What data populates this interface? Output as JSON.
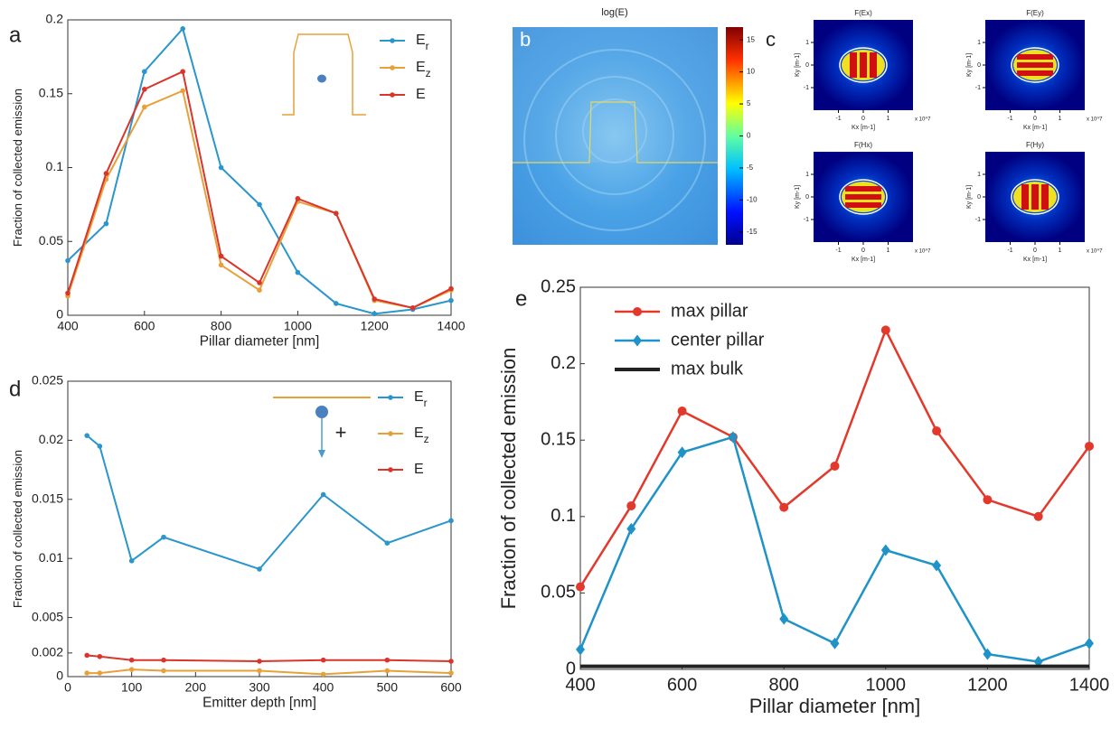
{
  "chart_data": [
    {
      "type": "line",
      "panel_label": "a",
      "xlabel": "Pillar diameter [nm]",
      "ylabel": "Fraction of collected emission",
      "x": [
        400,
        500,
        600,
        700,
        800,
        900,
        1000,
        1100,
        1200,
        1300,
        1400
      ],
      "series": [
        {
          "name": "Er",
          "color": "#2a96cc",
          "marker": "circle",
          "values": [
            0.037,
            0.062,
            0.165,
            0.194,
            0.1,
            0.075,
            0.029,
            0.008,
            0.001,
            0.004,
            0.01
          ]
        },
        {
          "name": "Ez",
          "color": "#e8a13a",
          "marker": "circle",
          "values": [
            0.013,
            0.092,
            0.141,
            0.152,
            0.034,
            0.017,
            0.077,
            0.069,
            0.01,
            0.005,
            0.017
          ]
        },
        {
          "name": "E",
          "color": "#d9352b",
          "marker": "circle",
          "values": [
            0.015,
            0.096,
            0.153,
            0.165,
            0.04,
            0.022,
            0.079,
            0.069,
            0.011,
            0.005,
            0.018
          ]
        }
      ],
      "xlim": [
        400,
        1400
      ],
      "ylim": [
        0,
        0.2
      ],
      "xticks": [
        400,
        600,
        800,
        1000,
        1200,
        1400
      ],
      "yticks": [
        0,
        0.05,
        0.1,
        0.15,
        0.2
      ],
      "legend": "upper right"
    },
    {
      "type": "line",
      "panel_label": "d",
      "xlabel": "Emitter depth [nm]",
      "ylabel": "Fraction of collected emission",
      "annotations": [
        "+"
      ],
      "x": [
        30,
        50,
        100,
        150,
        300,
        400,
        500,
        600
      ],
      "series": [
        {
          "name": "Er",
          "color": "#2a96cc",
          "marker": "circle",
          "values": [
            0.0204,
            0.0195,
            0.0098,
            0.0118,
            0.0091,
            0.0154,
            0.0113,
            0.0132
          ]
        },
        {
          "name": "Ez",
          "color": "#e8a13a",
          "marker": "circle",
          "values": [
            0.0003,
            0.0003,
            0.0006,
            0.0005,
            0.0005,
            0.0002,
            0.0005,
            0.0003
          ]
        },
        {
          "name": "E",
          "color": "#d9352b",
          "marker": "circle",
          "values": [
            0.0018,
            0.0017,
            0.0014,
            0.0014,
            0.0013,
            0.0014,
            0.0014,
            0.0013
          ]
        }
      ],
      "xlim": [
        0,
        600
      ],
      "ylim": [
        0,
        0.025
      ],
      "xticks": [
        0,
        100,
        200,
        300,
        400,
        500,
        600
      ],
      "yticks": [
        0,
        0.002,
        0.005,
        0.01,
        0.015,
        0.02,
        0.025
      ],
      "legend": "upper right"
    },
    {
      "type": "line",
      "panel_label": "e",
      "xlabel": "Pillar diameter [nm]",
      "ylabel": "Fraction of collected emission",
      "x": [
        400,
        500,
        600,
        700,
        800,
        900,
        1000,
        1100,
        1200,
        1300,
        1400
      ],
      "series": [
        {
          "name": "max pillar",
          "color": "#e3392c",
          "marker": "circle",
          "values": [
            0.054,
            0.107,
            0.169,
            0.152,
            0.106,
            0.133,
            0.222,
            0.156,
            0.111,
            0.1,
            0.146
          ]
        },
        {
          "name": "center pillar",
          "color": "#1f93c8",
          "marker": "diamond",
          "values": [
            0.013,
            0.092,
            0.142,
            0.152,
            0.033,
            0.017,
            0.078,
            0.068,
            0.01,
            0.005,
            0.017
          ]
        },
        {
          "name": "max bulk",
          "color": "#222222",
          "marker": "none",
          "values": [
            0.002,
            0.002,
            0.002,
            0.002,
            0.002,
            0.002,
            0.002,
            0.002,
            0.002,
            0.002,
            0.002
          ]
        }
      ],
      "xlim": [
        400,
        1400
      ],
      "ylim": [
        0,
        0.25
      ],
      "xticks": [
        400,
        600,
        800,
        1000,
        1200,
        1400
      ],
      "yticks": [
        0,
        0.05,
        0.1,
        0.15,
        0.2,
        0.25
      ],
      "legend": "upper left"
    }
  ],
  "panel_b": {
    "label": "b",
    "title": "log(E)",
    "colorbar": {
      "lim": [
        -17,
        17
      ],
      "ticks": [
        15,
        10,
        5,
        0,
        -5,
        -10,
        -15
      ]
    }
  },
  "panel_c": {
    "label": "c",
    "xlabel": "Kx [m-1]",
    "ylabel": "Ky [m-1]",
    "multiplier": "x 10^7",
    "lim": [
      -2,
      2
    ],
    "ticks": [
      -1,
      0,
      1
    ],
    "subplots": [
      "F(Ex)",
      "F(Ey)",
      "F(Hx)",
      "F(Hy)"
    ]
  }
}
